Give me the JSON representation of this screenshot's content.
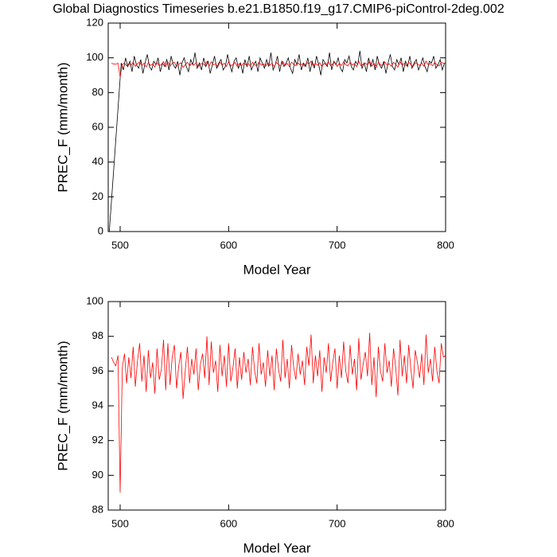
{
  "chart_data": [
    {
      "type": "line",
      "title": "Global Diagnostics Timeseries b.e21.B1850.f19_g17.CMIP6-piControl-2deg.002",
      "x_label": "Model Year",
      "y_label": "PREC_F (mm/month)",
      "xlim": [
        489,
        800
      ],
      "xticks": [
        500,
        600,
        700,
        800
      ],
      "ylim": [
        0,
        120
      ],
      "yticks": [
        0,
        20,
        40,
        60,
        80,
        100,
        120
      ],
      "series": [
        {
          "color": "#000000",
          "x": [
            490,
            501,
            503,
            505,
            507,
            509,
            511,
            513,
            515,
            517,
            519,
            521,
            523,
            525,
            527,
            529,
            531,
            533,
            535,
            537,
            539,
            541,
            543,
            545,
            547,
            549,
            551,
            553,
            555,
            557,
            559,
            561,
            563,
            565,
            567,
            569,
            571,
            573,
            575,
            577,
            579,
            581,
            583,
            585,
            587,
            589,
            591,
            593,
            595,
            597,
            599,
            601,
            603,
            605,
            607,
            609,
            611,
            613,
            615,
            617,
            619,
            621,
            623,
            625,
            627,
            629,
            631,
            633,
            635,
            637,
            639,
            641,
            643,
            645,
            647,
            649,
            651,
            653,
            655,
            657,
            659,
            661,
            663,
            665,
            667,
            669,
            671,
            673,
            675,
            677,
            679,
            681,
            683,
            685,
            687,
            689,
            691,
            693,
            695,
            697,
            699,
            701,
            703,
            705,
            707,
            709,
            711,
            713,
            715,
            717,
            719,
            721,
            723,
            725,
            727,
            729,
            731,
            733,
            735,
            737,
            739,
            741,
            743,
            745,
            747,
            749,
            751,
            753,
            755,
            757,
            759,
            761,
            763,
            765,
            767,
            769,
            771,
            773,
            775,
            777,
            779,
            781,
            783,
            785,
            787,
            789,
            791,
            793,
            795,
            797,
            799
          ],
          "values": [
            0,
            97,
            93,
            100,
            95,
            98,
            92,
            101,
            96,
            94,
            99,
            91,
            97,
            102,
            95,
            93,
            98,
            96,
            100,
            92,
            97,
            95,
            99,
            93,
            101,
            96,
            94,
            98,
            90,
            97,
            100,
            95,
            92,
            99,
            96,
            103,
            94,
            97,
            93,
            100,
            95,
            98,
            91,
            96,
            101,
            94,
            97,
            99,
            93,
            95,
            102,
            96,
            92,
            98,
            100,
            94,
            97,
            91,
            99,
            95,
            101,
            93,
            96,
            98,
            92,
            100,
            97,
            94,
            99,
            95,
            103,
            93,
            96,
            101,
            92,
            98,
            95,
            97,
            100,
            94,
            91,
            99,
            96,
            102,
            93,
            97,
            95,
            100,
            92,
            98,
            94,
            101,
            96,
            90,
            99,
            97,
            95,
            103,
            93,
            98,
            96,
            100,
            94,
            92,
            99,
            97,
            101,
            95,
            93,
            98,
            96,
            104,
            94,
            97,
            92,
            100,
            95,
            99,
            93,
            101,
            96,
            94,
            98,
            91,
            97,
            102,
            95,
            93,
            99,
            96,
            100,
            92,
            98,
            95,
            101,
            94,
            97,
            99,
            93,
            96,
            100,
            95,
            92,
            98,
            97,
            101,
            94,
            96,
            99,
            93,
            97
          ]
        },
        {
          "color": "#ff0000",
          "x": [
            492,
            494,
            496,
            498,
            500,
            502,
            504,
            506,
            508,
            510,
            512,
            514,
            516,
            518,
            520,
            522,
            524,
            526,
            528,
            530,
            532,
            534,
            536,
            538,
            540,
            542,
            544,
            546,
            548,
            550,
            552,
            554,
            556,
            558,
            560,
            562,
            564,
            566,
            568,
            570,
            572,
            574,
            576,
            578,
            580,
            582,
            584,
            586,
            588,
            590,
            592,
            594,
            596,
            598,
            600,
            602,
            604,
            606,
            608,
            610,
            612,
            614,
            616,
            618,
            620,
            622,
            624,
            626,
            628,
            630,
            632,
            634,
            636,
            638,
            640,
            642,
            644,
            646,
            648,
            650,
            652,
            654,
            656,
            658,
            660,
            662,
            664,
            666,
            668,
            670,
            672,
            674,
            676,
            678,
            680,
            682,
            684,
            686,
            688,
            690,
            692,
            694,
            696,
            698,
            700,
            702,
            704,
            706,
            708,
            710,
            712,
            714,
            716,
            718,
            720,
            722,
            724,
            726,
            728,
            730,
            732,
            734,
            736,
            738,
            740,
            742,
            744,
            746,
            748,
            750,
            752,
            754,
            756,
            758,
            760,
            762,
            764,
            766,
            768,
            770,
            772,
            774,
            776,
            778,
            780,
            782,
            784,
            786,
            788,
            790,
            792,
            794,
            796,
            798,
            800
          ],
          "values": [
            96.8,
            96.5,
            96.3,
            96.9,
            89.0,
            96.2,
            97.0,
            95.3,
            96.8,
            95.6,
            97.4,
            95.1,
            96.6,
            97.6,
            95.4,
            96.9,
            94.8,
            97.2,
            95.6,
            96.5,
            94.7,
            97.3,
            95.5,
            96.1,
            97.8,
            94.9,
            97.6,
            95.2,
            96.8,
            97.5,
            95.0,
            96.3,
            97.1,
            94.4,
            96.0,
            97.4,
            95.3,
            96.7,
            95.8,
            97.3,
            94.9,
            96.4,
            97.0,
            95.6,
            98.0,
            95.2,
            97.7,
            95.9,
            96.6,
            94.8,
            97.5,
            95.7,
            96.9,
            95.1,
            97.6,
            95.4,
            96.2,
            97.3,
            95.0,
            96.8,
            95.5,
            97.1,
            95.9,
            96.7,
            95.2,
            97.4,
            96.0,
            95.3,
            97.6,
            95.8,
            96.5,
            95.1,
            97.2,
            95.7,
            96.9,
            94.9,
            97.3,
            96.1,
            95.4,
            97.8,
            95.6,
            96.7,
            95.0,
            97.5,
            96.2,
            95.5,
            97.0,
            95.8,
            96.6,
            95.2,
            97.4,
            96.3,
            98.1,
            95.3,
            96.9,
            95.7,
            97.2,
            94.8,
            96.8,
            95.9,
            97.6,
            95.4,
            96.5,
            97.3,
            95.0,
            96.9,
            95.6,
            97.7,
            96.0,
            95.3,
            97.5,
            95.8,
            96.7,
            94.9,
            97.9,
            95.5,
            96.4,
            97.1,
            95.7,
            98.2,
            95.2,
            96.8,
            94.5,
            97.4,
            96.0,
            95.4,
            97.6,
            95.9,
            96.6,
            95.1,
            97.3,
            96.2,
            94.6,
            97.8,
            95.7,
            96.9,
            95.3,
            97.5,
            96.1,
            95.0,
            97.2,
            96.5,
            95.6,
            97.0,
            95.2,
            98.1,
            95.9,
            96.7,
            95.4,
            97.4,
            96.0,
            95.3,
            97.6,
            96.8,
            96.9
          ]
        }
      ]
    },
    {
      "type": "line",
      "x_label": "Model Year",
      "y_label": "PREC_F (mm/month)",
      "xlim": [
        489,
        800
      ],
      "xticks": [
        500,
        600,
        700,
        800
      ],
      "ylim": [
        88,
        100
      ],
      "yticks": [
        88,
        90,
        92,
        94,
        96,
        98,
        100
      ],
      "series": [
        {
          "color": "#ff0000",
          "x": [
            492,
            494,
            496,
            498,
            500,
            502,
            504,
            506,
            508,
            510,
            512,
            514,
            516,
            518,
            520,
            522,
            524,
            526,
            528,
            530,
            532,
            534,
            536,
            538,
            540,
            542,
            544,
            546,
            548,
            550,
            552,
            554,
            556,
            558,
            560,
            562,
            564,
            566,
            568,
            570,
            572,
            574,
            576,
            578,
            580,
            582,
            584,
            586,
            588,
            590,
            592,
            594,
            596,
            598,
            600,
            602,
            604,
            606,
            608,
            610,
            612,
            614,
            616,
            618,
            620,
            622,
            624,
            626,
            628,
            630,
            632,
            634,
            636,
            638,
            640,
            642,
            644,
            646,
            648,
            650,
            652,
            654,
            656,
            658,
            660,
            662,
            664,
            666,
            668,
            670,
            672,
            674,
            676,
            678,
            680,
            682,
            684,
            686,
            688,
            690,
            692,
            694,
            696,
            698,
            700,
            702,
            704,
            706,
            708,
            710,
            712,
            714,
            716,
            718,
            720,
            722,
            724,
            726,
            728,
            730,
            732,
            734,
            736,
            738,
            740,
            742,
            744,
            746,
            748,
            750,
            752,
            754,
            756,
            758,
            760,
            762,
            764,
            766,
            768,
            770,
            772,
            774,
            776,
            778,
            780,
            782,
            784,
            786,
            788,
            790,
            792,
            794,
            796,
            798,
            800
          ],
          "values": [
            96.8,
            96.5,
            96.3,
            96.9,
            89.0,
            96.2,
            97.0,
            95.3,
            96.8,
            95.6,
            97.4,
            95.1,
            96.6,
            97.6,
            95.4,
            96.9,
            94.8,
            97.2,
            95.6,
            96.5,
            94.7,
            97.3,
            95.5,
            96.1,
            97.8,
            94.9,
            97.6,
            95.2,
            96.8,
            97.5,
            95.0,
            96.3,
            97.1,
            94.4,
            96.0,
            97.4,
            95.3,
            96.7,
            95.8,
            97.3,
            94.9,
            96.4,
            97.0,
            95.6,
            98.0,
            95.2,
            97.7,
            95.9,
            96.6,
            94.8,
            97.5,
            95.7,
            96.9,
            95.1,
            97.6,
            95.4,
            96.2,
            97.3,
            95.0,
            96.8,
            95.5,
            97.1,
            95.9,
            96.7,
            95.2,
            97.4,
            96.0,
            95.3,
            97.6,
            95.8,
            96.5,
            95.1,
            97.2,
            95.7,
            96.9,
            94.9,
            97.3,
            96.1,
            95.4,
            97.8,
            95.6,
            96.7,
            95.0,
            97.5,
            96.2,
            95.5,
            97.0,
            95.8,
            96.6,
            95.2,
            97.4,
            96.3,
            98.1,
            95.3,
            96.9,
            95.7,
            97.2,
            94.8,
            96.8,
            95.9,
            97.6,
            95.4,
            96.5,
            97.3,
            95.0,
            96.9,
            95.6,
            97.7,
            96.0,
            95.3,
            97.5,
            95.8,
            96.7,
            94.9,
            97.9,
            95.5,
            96.4,
            97.1,
            95.7,
            98.2,
            95.2,
            96.8,
            94.5,
            97.4,
            96.0,
            95.4,
            97.6,
            95.9,
            96.6,
            95.1,
            97.3,
            96.2,
            94.6,
            97.8,
            95.7,
            96.9,
            95.3,
            97.5,
            96.1,
            95.0,
            97.2,
            96.5,
            95.6,
            97.0,
            95.2,
            98.1,
            95.9,
            96.7,
            95.4,
            97.4,
            96.0,
            95.3,
            97.6,
            96.8,
            96.9
          ]
        }
      ]
    }
  ]
}
